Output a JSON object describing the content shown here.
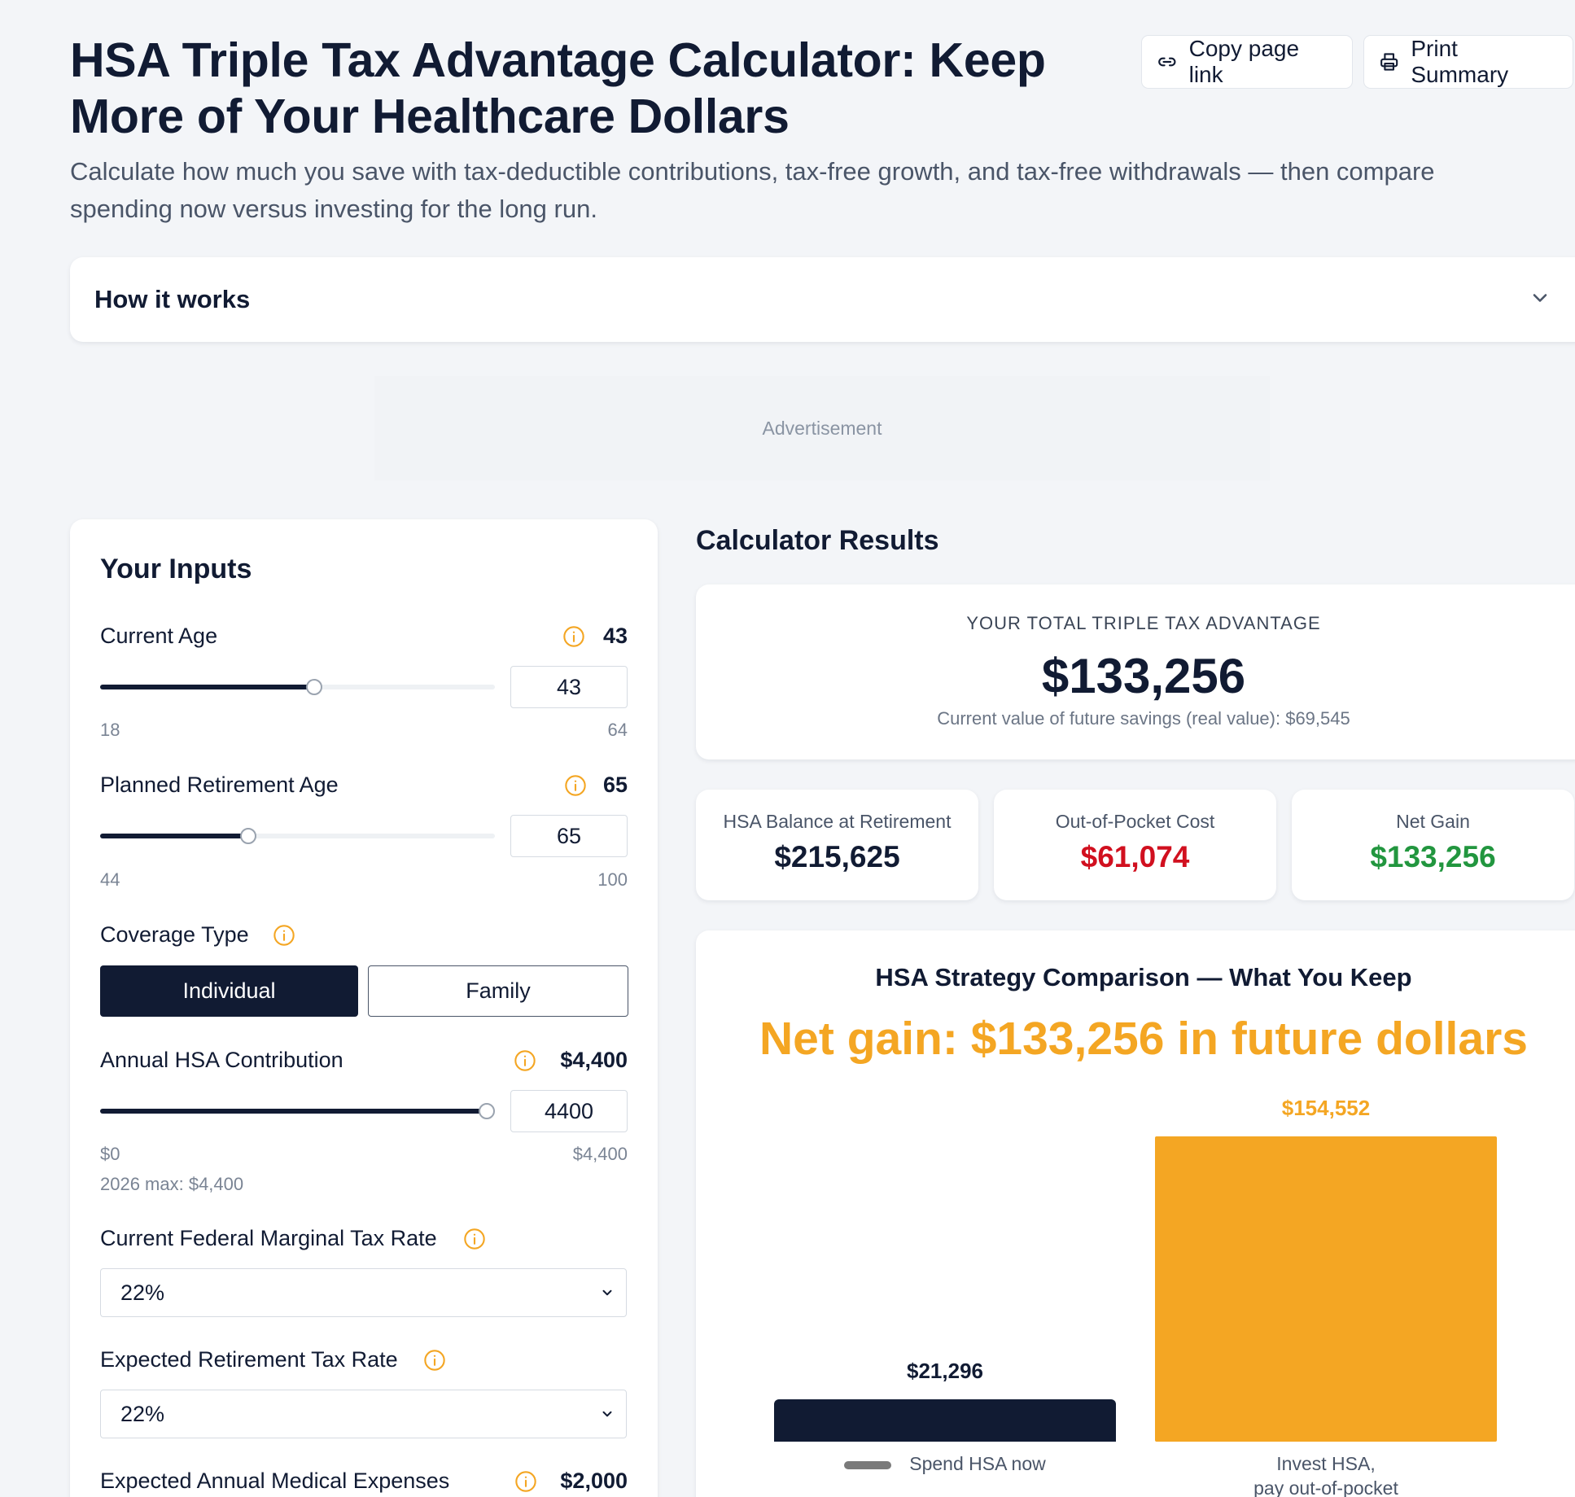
{
  "header": {
    "title": "HSA Triple Tax Advantage Calculator: Keep More of Your Healthcare Dollars",
    "subtitle": "Calculate how much you save with tax-deductible contributions, tax-free growth, and tax-free withdrawals — then compare spending now versus investing for the long run.",
    "copy_link_label": "Copy page link",
    "print_label": "Print Summary"
  },
  "how_it_works": {
    "label": "How it works"
  },
  "ad": {
    "label": "Advertisement"
  },
  "inputs": {
    "title": "Your Inputs",
    "current_age": {
      "label": "Current Age",
      "value": "43",
      "input": "43",
      "min": "18",
      "max": "64",
      "fraction": 0.543
    },
    "retirement_age": {
      "label": "Planned Retirement Age",
      "value": "65",
      "input": "65",
      "min": "44",
      "max": "100",
      "fraction": 0.375
    },
    "coverage": {
      "label": "Coverage Type",
      "options": [
        "Individual",
        "Family"
      ],
      "selected": "Individual"
    },
    "contribution": {
      "label": "Annual HSA Contribution",
      "value": "$4,400",
      "input": "4400",
      "min": "$0",
      "max": "$4,400",
      "note": "2026 max: $4,400",
      "fraction": 1.0
    },
    "current_tax": {
      "label": "Current Federal Marginal Tax Rate",
      "selected": "22%"
    },
    "retirement_tax": {
      "label": "Expected Retirement Tax Rate",
      "selected": "22%"
    },
    "medical": {
      "label": "Expected Annual Medical Expenses",
      "value": "$2,000"
    }
  },
  "results": {
    "title": "Calculator Results",
    "total": {
      "label": "YOUR TOTAL TRIPLE TAX ADVANTAGE",
      "value": "$133,256",
      "sub": "Current value of future savings (real value): $69,545"
    },
    "stats": [
      {
        "label": "HSA Balance at Retirement",
        "value": "$215,625",
        "color": "#111b33"
      },
      {
        "label": "Out-of-Pocket Cost",
        "value": "$61,074",
        "color": "#d1101f"
      },
      {
        "label": "Net Gain",
        "value": "$133,256",
        "color": "#22963f"
      }
    ]
  },
  "chart_data": {
    "type": "bar",
    "title": "HSA Strategy Comparison — What You Keep",
    "headline": "Net gain: $133,256 in future dollars",
    "categories": [
      "Spend HSA now",
      "Invest HSA, pay out-of-pocket"
    ],
    "category_lines": [
      [
        "Spend HSA now"
      ],
      [
        "Invest HSA,",
        "pay out-of-pocket"
      ]
    ],
    "values": [
      21296,
      154552
    ],
    "value_labels": [
      "$21,296",
      "$154,552"
    ],
    "colors": [
      "#111b33",
      "#f4a623"
    ],
    "ylim": [
      0,
      154552
    ]
  }
}
